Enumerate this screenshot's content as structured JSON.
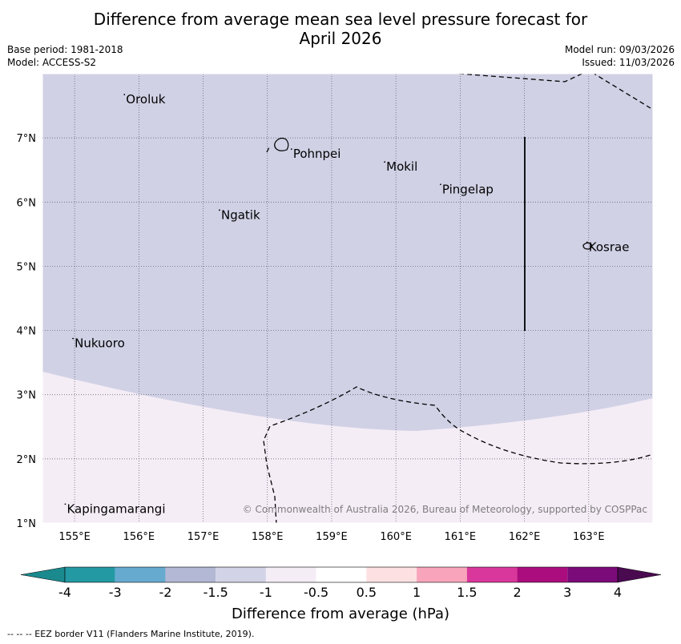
{
  "title": {
    "line1": "Difference from average mean sea level pressure forecast for",
    "line2": "April 2026"
  },
  "meta": {
    "base_period": "Base period: 1981-2018",
    "model": "Model: ACCESS-S2",
    "model_run": "Model run: 09/03/2026",
    "issued": "Issued: 11/03/2026"
  },
  "map": {
    "lon_range": [
      154.5,
      164.0
    ],
    "lat_range": [
      1.0,
      8.0
    ],
    "lon_ticks": [
      155,
      156,
      157,
      158,
      159,
      160,
      161,
      162,
      163
    ],
    "lon_labels": [
      "155°E",
      "156°E",
      "157°E",
      "158°E",
      "159°E",
      "160°E",
      "161°E",
      "162°E",
      "163°E"
    ],
    "lat_ticks": [
      1,
      2,
      3,
      4,
      5,
      6,
      7
    ],
    "lat_labels": [
      "1°N",
      "2°N",
      "3°N",
      "4°N",
      "5°N",
      "6°N",
      "7°N"
    ],
    "places": [
      {
        "name": "Oroluk",
        "lon": 155.8,
        "lat": 7.6
      },
      {
        "name": "Pohnpei",
        "lon": 158.4,
        "lat": 6.75
      },
      {
        "name": "Mokil",
        "lon": 159.85,
        "lat": 6.55
      },
      {
        "name": "Pingelap",
        "lon": 160.72,
        "lat": 6.2
      },
      {
        "name": "Ngatik",
        "lon": 157.28,
        "lat": 5.8
      },
      {
        "name": "Kosrae",
        "lon": 163.0,
        "lat": 5.3
      },
      {
        "name": "Nukuoro",
        "lon": 155.0,
        "lat": 3.8
      },
      {
        "name": "Kapingamarangi",
        "lon": 154.88,
        "lat": 1.22
      }
    ],
    "regions": {
      "upper_category": "-1.5 to -1",
      "lower_category": "-1 to -0.5"
    },
    "copyright": "© Commonwealth of Australia 2026, Bureau of Meteorology, supported by COSPPac"
  },
  "colorbar": {
    "ticks": [
      "-4",
      "-3",
      "-2",
      "-1.5",
      "-1",
      "-0.5",
      "0.5",
      "1",
      "1.5",
      "2",
      "3",
      "4"
    ],
    "colors": [
      "#1b8a8e",
      "#2399a3",
      "#66aad0",
      "#b3b8d4",
      "#d2d3e6",
      "#f5edf6",
      "#ffffff",
      "#fde1e2",
      "#f8a5bb",
      "#d9379b",
      "#ab0d7e",
      "#7b0b79",
      "#4a0a50"
    ],
    "label": "Difference from average (hPa)"
  },
  "footer": "--  --  -- EEZ border V11 (Flanders Marine Institute, 2019)."
}
